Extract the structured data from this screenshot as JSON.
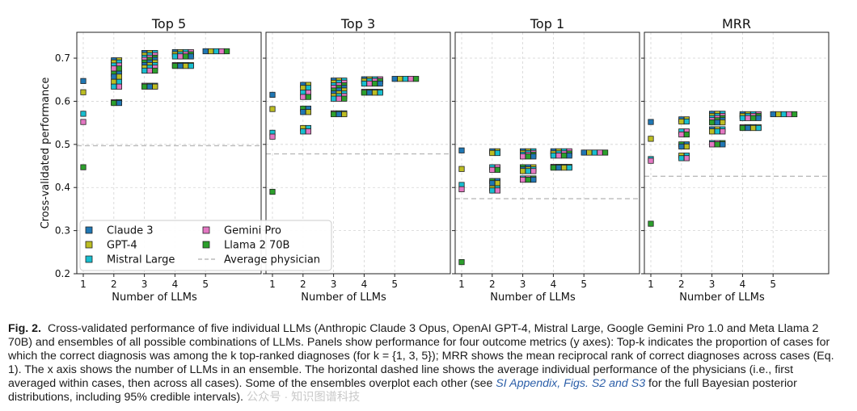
{
  "legend": {
    "items": [
      {
        "name": "Claude 3",
        "color": "#1f77b4"
      },
      {
        "name": "GPT-4",
        "color": "#bcbd22"
      },
      {
        "name": "Mistral Large",
        "color": "#17becf"
      },
      {
        "name": "Gemini Pro",
        "color": "#e377c2"
      },
      {
        "name": "Llama 2 70B",
        "color": "#2ca02c"
      },
      {
        "name": "Average physician",
        "color": "#bbbbbb"
      }
    ]
  },
  "chart_data": [
    {
      "type": "scatter",
      "title": "Top 5",
      "xlabel": "Number of LLMs",
      "ylabel": "Cross-validated performance",
      "xticks": [
        1,
        2,
        3,
        4,
        5
      ],
      "ylim": [
        0.2,
        0.76
      ],
      "yticks": [
        "0.2",
        "0.3",
        "0.4",
        "0.5",
        "0.6",
        "0.7"
      ],
      "average_physician": 0.497,
      "points": {
        "1": [
          0.647,
          0.621,
          0.571,
          0.552,
          0.447
        ],
        "2": [
          0.695,
          0.69,
          0.683,
          0.676,
          0.664,
          0.657,
          0.645,
          0.634,
          0.598,
          0.596
        ],
        "3": [
          0.712,
          0.707,
          0.701,
          0.696,
          0.69,
          0.684,
          0.678,
          0.671,
          0.636,
          0.634
        ],
        "4": [
          0.714,
          0.709,
          0.704,
          0.684,
          0.682
        ],
        "5": [
          0.716
        ]
      }
    },
    {
      "type": "scatter",
      "title": "Top 3",
      "xlabel": "Number of LLMs",
      "ylabel": "",
      "xticks": [
        1,
        2,
        3,
        4,
        5
      ],
      "ylim": [
        0.2,
        0.76
      ],
      "average_physician": 0.478,
      "points": {
        "1": [
          0.615,
          0.582,
          0.527,
          0.518,
          0.39
        ],
        "2": [
          0.638,
          0.631,
          0.62,
          0.61,
          0.583,
          0.575,
          0.538,
          0.53
        ],
        "3": [
          0.648,
          0.643,
          0.637,
          0.631,
          0.625,
          0.618,
          0.612,
          0.606,
          0.572,
          0.57
        ],
        "4": [
          0.651,
          0.647,
          0.641,
          0.622,
          0.62
        ],
        "5": [
          0.652
        ]
      }
    },
    {
      "type": "scatter",
      "title": "Top 1",
      "xlabel": "Number of LLMs",
      "ylabel": "",
      "xticks": [
        1,
        2,
        3,
        4,
        5
      ],
      "ylim": [
        0.2,
        0.76
      ],
      "average_physician": 0.374,
      "points": {
        "1": [
          0.486,
          0.443,
          0.406,
          0.396,
          0.227
        ],
        "2": [
          0.484,
          0.48,
          0.447,
          0.441,
          0.415,
          0.41,
          0.398,
          0.393
        ],
        "3": [
          0.484,
          0.48,
          0.476,
          0.472,
          0.447,
          0.442,
          0.438,
          0.421,
          0.418
        ],
        "4": [
          0.484,
          0.479,
          0.474,
          0.448,
          0.446
        ],
        "5": [
          0.481
        ]
      }
    },
    {
      "type": "scatter",
      "title": "MRR",
      "xlabel": "Number of LLMs",
      "ylabel": "",
      "xticks": [
        1,
        2,
        3,
        4,
        5
      ],
      "ylim": [
        0.2,
        0.76
      ],
      "average_physician": 0.426,
      "points": {
        "1": [
          0.552,
          0.513,
          0.466,
          0.462,
          0.316
        ],
        "2": [
          0.558,
          0.553,
          0.53,
          0.523,
          0.5,
          0.495,
          0.474,
          0.468
        ],
        "3": [
          0.571,
          0.566,
          0.561,
          0.556,
          0.551,
          0.535,
          0.53,
          0.503,
          0.5
        ],
        "4": [
          0.57,
          0.566,
          0.561,
          0.54,
          0.538
        ],
        "5": [
          0.57
        ]
      }
    }
  ],
  "caption": {
    "fig_label": "Fig. 2.",
    "text_1": "Cross-validated performance of five individual LLMs (Anthropic Claude 3 Opus, OpenAI GPT-4, Mistral Large, Google Gemini Pro 1.0 and Meta Llama 2 70B) and ensembles of all possible combinations of LLMs. Panels show performance for four outcome metrics (y axes): Top-k indicates the proportion of cases for which the correct diagnosis was among the k top-ranked diagnoses (for k = {1, 3, 5}); MRR shows the mean reciprocal rank of correct diagnoses across cases (Eq. 1). The x axis shows the number of LLMs in an ensemble. The horizontal dashed line shows the average individual performance of the physicians (i.e., first averaged within cases, then across all cases). Some of the ensembles overplot each other (see ",
    "si_link": "SI Appendix, Figs. S2 and S3",
    "text_2": " for the full Bayesian posterior distributions, including 95% credible intervals).",
    "watermark": "公众号 · 知识图谱科技"
  }
}
